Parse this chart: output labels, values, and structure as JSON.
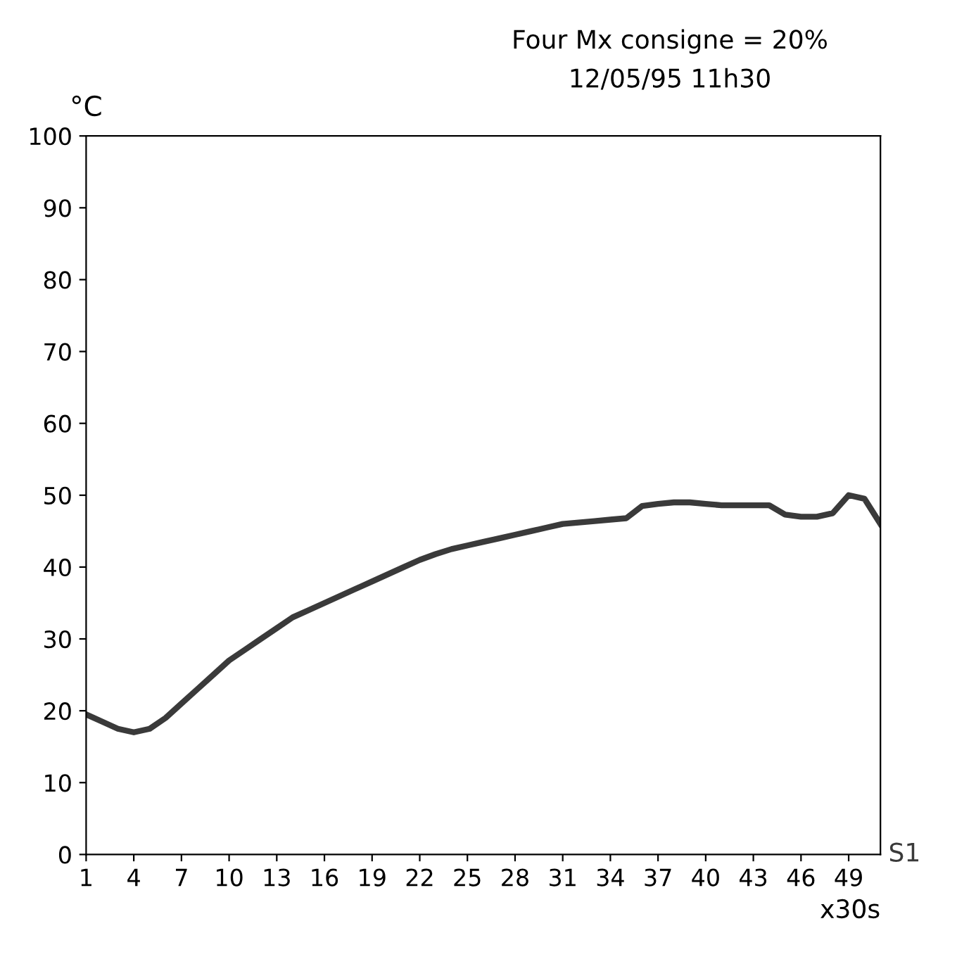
{
  "chart_data": {
    "type": "line",
    "title": "Four Mx consigne = 20%",
    "subtitle": "12/05/95 11h30",
    "xlabel": "x30s",
    "ylabel": "°C",
    "x": [
      1,
      2,
      3,
      4,
      5,
      6,
      7,
      8,
      9,
      10,
      11,
      12,
      13,
      14,
      15,
      16,
      17,
      18,
      19,
      20,
      21,
      22,
      23,
      24,
      25,
      26,
      27,
      28,
      29,
      30,
      31,
      32,
      33,
      34,
      35,
      36,
      37,
      38,
      39,
      40,
      41,
      42,
      43,
      44,
      45,
      46,
      47,
      48,
      49,
      50,
      51
    ],
    "series": [
      {
        "name": "S1",
        "color": "#3a3a3a",
        "values": [
          19.5,
          18.5,
          17.5,
          17,
          17.5,
          19,
          21,
          23,
          25,
          27,
          28.5,
          30,
          31.5,
          33,
          34,
          35,
          36,
          37,
          38,
          39,
          40,
          41,
          41.8,
          42.5,
          43,
          43.5,
          44,
          44.5,
          45,
          45.5,
          46,
          46.2,
          46.4,
          46.6,
          46.8,
          48.5,
          48.8,
          49,
          49,
          48.8,
          48.6,
          48.6,
          48.6,
          48.6,
          47.3,
          47,
          47,
          47.5,
          50,
          49.5,
          46
        ]
      }
    ],
    "xlim": [
      1,
      51
    ],
    "xticks": [
      1,
      4,
      7,
      10,
      13,
      16,
      19,
      22,
      25,
      28,
      31,
      34,
      37,
      40,
      43,
      46,
      49
    ],
    "ylim": [
      0,
      100
    ],
    "yticks": [
      0,
      10,
      20,
      30,
      40,
      50,
      60,
      70,
      80,
      90,
      100
    ],
    "grid": false,
    "legend": false,
    "marker": "none",
    "line_style": "solid"
  }
}
